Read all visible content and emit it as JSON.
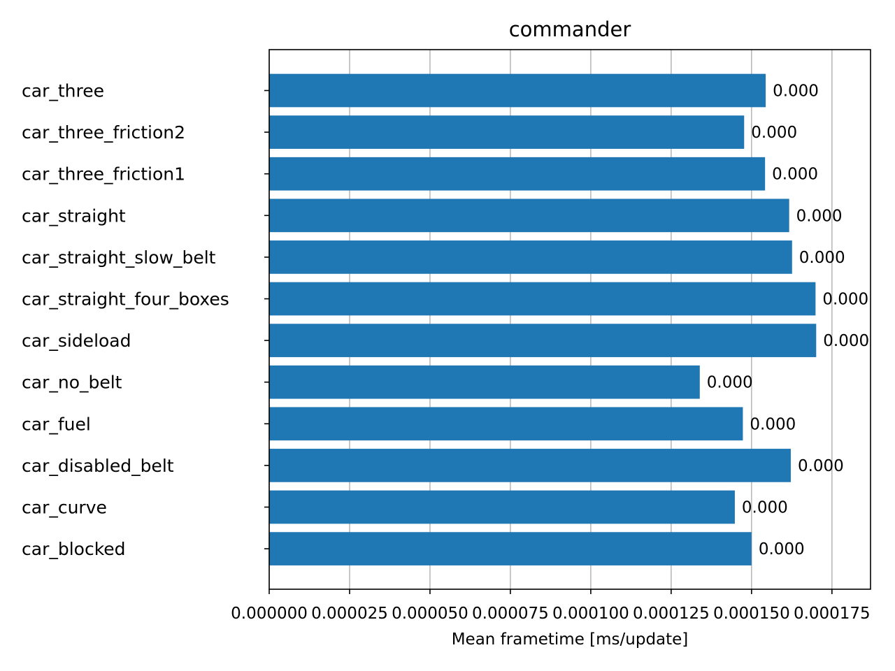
{
  "chart_data": {
    "type": "bar",
    "orientation": "horizontal",
    "title": "commander",
    "xlabel": "Mean frametime [ms/update]",
    "ylabel": "",
    "categories": [
      "car_three",
      "car_three_friction2",
      "car_three_friction1",
      "car_straight",
      "car_straight_slow_belt",
      "car_straight_four_boxes",
      "car_sideload",
      "car_no_belt",
      "car_fuel",
      "car_disabled_belt",
      "car_curve",
      "car_blocked"
    ],
    "values": [
      0.0001544,
      0.0001477,
      0.0001542,
      0.0001617,
      0.0001626,
      0.0001699,
      0.0001701,
      0.0001339,
      0.0001473,
      0.0001622,
      0.0001448,
      0.00015
    ],
    "value_labels": [
      "0.000",
      "0.000",
      "0.000",
      "0.000",
      "0.000",
      "0.000",
      "0.000",
      "0.000",
      "0.000",
      "0.000",
      "0.000",
      "0.000"
    ],
    "xticks": [
      0.0,
      2.5e-05,
      5e-05,
      7.5e-05,
      0.0001,
      0.000125,
      0.00015,
      0.000175
    ],
    "xtick_labels": [
      "0.000000",
      "0.000025",
      "0.000050",
      "0.000075",
      "0.000100",
      "0.000125",
      "0.000150",
      "0.000175"
    ],
    "xlim": [
      0,
      0.000187
    ],
    "grid": "x-axis vertical lines",
    "bar_color": "#1f77b4",
    "grid_color": "#b0b0b0"
  }
}
